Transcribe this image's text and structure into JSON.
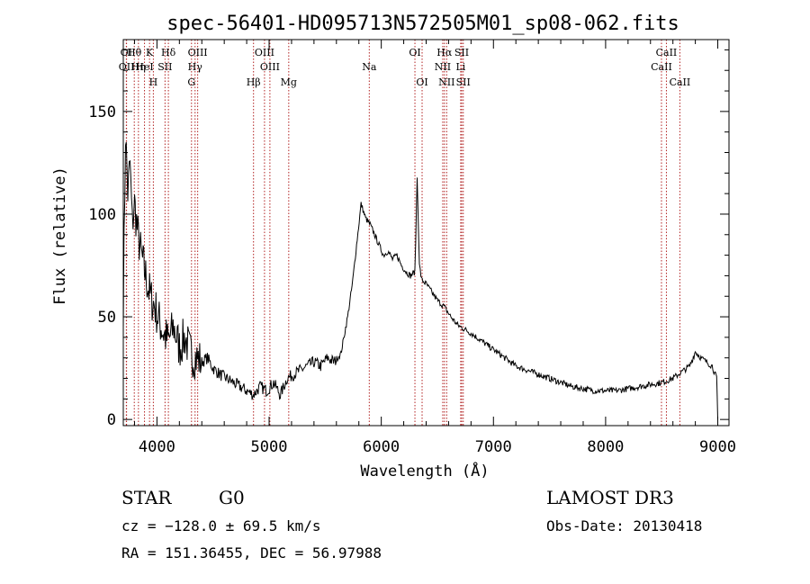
{
  "chart_data": {
    "type": "line",
    "title": "spec-56401-HD095713N572505M01_sp08-062.fits",
    "xlabel": "Wavelength (Å)",
    "ylabel": "Flux (relative)",
    "xlim": [
      3700,
      9100
    ],
    "ylim": [
      -3,
      185
    ],
    "x_ticks": [
      4000,
      5000,
      6000,
      7000,
      8000,
      9000
    ],
    "x_tick_labels": [
      "4000",
      "5000",
      "6000",
      "7000",
      "8000",
      "9000"
    ],
    "y_ticks": [
      0,
      50,
      100,
      150
    ],
    "y_tick_labels": [
      "0",
      "50",
      "100",
      "150"
    ],
    "line_color": "#000000",
    "marker_color": "#b22222",
    "series": [
      {
        "name": "flux",
        "x": [
          3700,
          3720,
          3740,
          3760,
          3780,
          3800,
          3830,
          3860,
          3900,
          3940,
          3980,
          4020,
          4060,
          4100,
          4150,
          4200,
          4250,
          4300,
          4350,
          4400,
          4450,
          4500,
          4560,
          4620,
          4680,
          4740,
          4800,
          4860,
          4920,
          4980,
          5040,
          5100,
          5160,
          5220,
          5280,
          5340,
          5400,
          5460,
          5520,
          5580,
          5640,
          5700,
          5740,
          5780,
          5820,
          5860,
          5900,
          5940,
          5980,
          6020,
          6060,
          6100,
          6140,
          6180,
          6220,
          6260,
          6300,
          6320,
          6340,
          6360,
          6400,
          6450,
          6500,
          6560,
          6620,
          6680,
          6740,
          6800,
          6900,
          7000,
          7100,
          7200,
          7300,
          7400,
          7500,
          7600,
          7700,
          7800,
          7900,
          8000,
          8100,
          8200,
          8300,
          8400,
          8500,
          8600,
          8650,
          8700,
          8750,
          8800,
          8850,
          8900,
          8950,
          8990,
          9000
        ],
        "y": [
          55,
          140,
          110,
          125,
          95,
          105,
          90,
          80,
          70,
          60,
          55,
          48,
          42,
          38,
          45,
          35,
          40,
          32,
          30,
          28,
          30,
          25,
          22,
          20,
          18,
          16,
          14,
          12,
          16,
          14,
          18,
          12,
          20,
          22,
          24,
          26,
          28,
          26,
          30,
          28,
          32,
          50,
          65,
          85,
          105,
          98,
          95,
          90,
          85,
          80,
          82,
          78,
          80,
          75,
          72,
          70,
          72,
          118,
          75,
          68,
          66,
          62,
          58,
          55,
          50,
          46,
          44,
          42,
          38,
          34,
          30,
          26,
          24,
          22,
          20,
          18,
          16,
          15,
          14,
          14,
          14,
          15,
          16,
          17,
          18,
          20,
          22,
          24,
          26,
          33,
          30,
          28,
          26,
          20,
          0
        ]
      }
    ],
    "lines": [
      {
        "label": "Hθ",
        "x": 3798
      },
      {
        "label": "K",
        "x": 3934
      },
      {
        "label": "Hδ",
        "x": 4102
      },
      {
        "label": "OIII",
        "x": 4363
      },
      {
        "label": "OIII",
        "x": 4959
      },
      {
        "label": "OI",
        "x": 6300
      },
      {
        "label": "Hα",
        "x": 6563
      },
      {
        "label": "SII",
        "x": 6717
      },
      {
        "label": "CaII",
        "x": 8542
      },
      {
        "label": "OI",
        "x": 3727
      },
      {
        "label": "HeI",
        "x": 3889
      },
      {
        "label": "SII",
        "x": 4072
      },
      {
        "label": "Hγ",
        "x": 4340
      },
      {
        "label": "OIII",
        "x": 5007
      },
      {
        "label": "Na",
        "x": 5893
      },
      {
        "label": "NII",
        "x": 6548
      },
      {
        "label": "Li",
        "x": 6708
      },
      {
        "label": "CaII",
        "x": 8498
      },
      {
        "label": "OII",
        "x": 3729
      },
      {
        "label": "Hη",
        "x": 3835
      },
      {
        "label": "H",
        "x": 3968
      },
      {
        "label": "G",
        "x": 4308
      },
      {
        "label": "Hβ",
        "x": 4861
      },
      {
        "label": "Mg",
        "x": 5175
      },
      {
        "label": "OI",
        "x": 6364
      },
      {
        "label": "NII",
        "x": 6583
      },
      {
        "label": "SII",
        "x": 6731
      },
      {
        "label": "CaII",
        "x": 8662
      }
    ]
  },
  "info": {
    "object_class": "STAR",
    "subclass": "G0",
    "survey": "LAMOST DR3",
    "cz": "cz = −128.0 ± 69.5 km/s",
    "obs_date": "Obs-Date: 20130418",
    "coords": "RA = 151.36455, DEC =  56.97988"
  }
}
